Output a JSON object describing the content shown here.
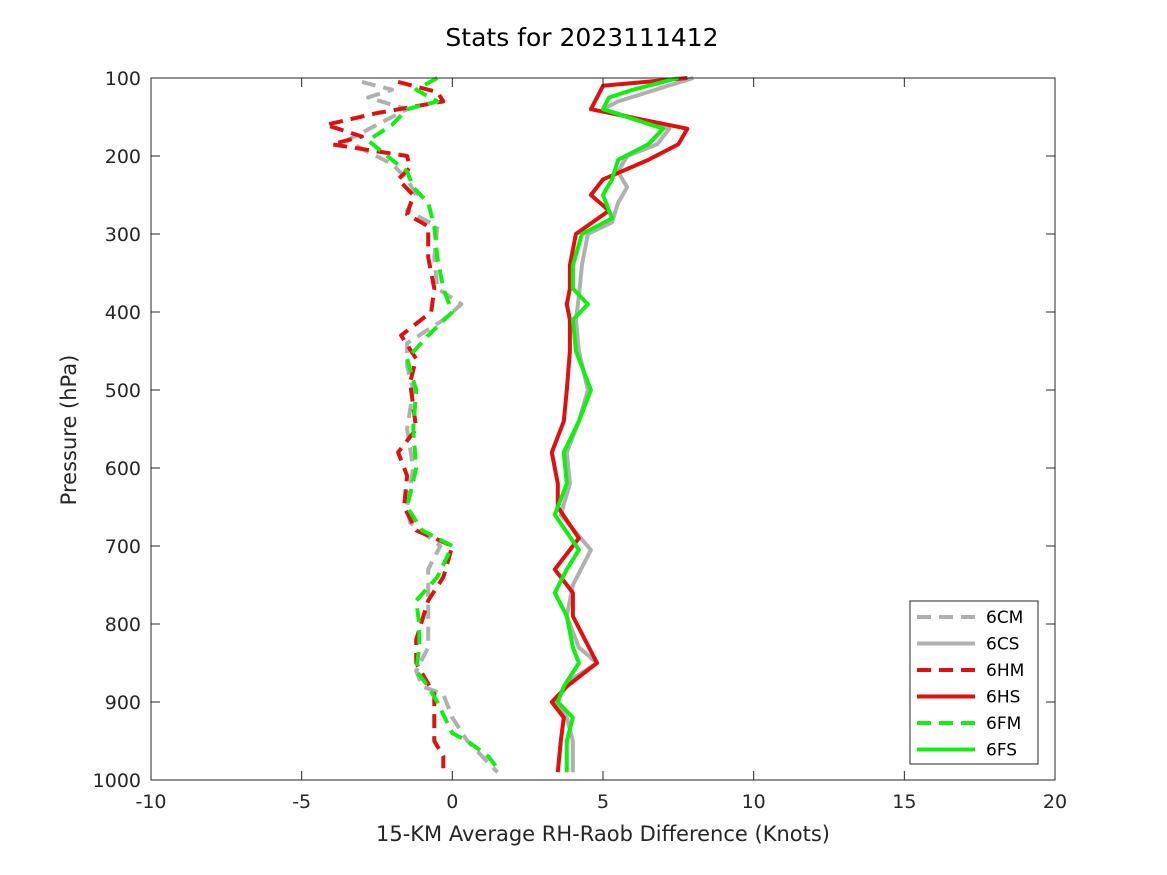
{
  "chart_data": {
    "type": "line",
    "title": "Stats for 2023111412",
    "xlabel": "15-KM Average RH-Raob Difference (Knots)",
    "ylabel": "Pressure (hPa)",
    "xlim": [
      -10,
      20
    ],
    "ylim": [
      100,
      1000
    ],
    "y_reversed": true,
    "grid": false,
    "legend_position": "bottom-right",
    "xticks": [
      "-10",
      "-5",
      "0",
      "5",
      "10",
      "15",
      "20"
    ],
    "yticks": [
      "100",
      "200",
      "300",
      "400",
      "500",
      "600",
      "700",
      "800",
      "900",
      "1000"
    ],
    "series": [
      {
        "name": "6CM",
        "color": "#b0b0b0",
        "dashed": true,
        "points": [
          [
            -3.0,
            105
          ],
          [
            -2.0,
            115
          ],
          [
            -2.8,
            125
          ],
          [
            -1.5,
            140
          ],
          [
            -2.5,
            160
          ],
          [
            -3.5,
            180
          ],
          [
            -2.8,
            195
          ],
          [
            -2.0,
            210
          ],
          [
            -1.5,
            230
          ],
          [
            -1.2,
            250
          ],
          [
            -1.5,
            270
          ],
          [
            -0.5,
            290
          ],
          [
            -0.6,
            330
          ],
          [
            -0.5,
            370
          ],
          [
            0.3,
            390
          ],
          [
            -0.3,
            410
          ],
          [
            -1.5,
            440
          ],
          [
            -1.5,
            470
          ],
          [
            -1.3,
            500
          ],
          [
            -1.5,
            550
          ],
          [
            -1.3,
            600
          ],
          [
            -1.5,
            650
          ],
          [
            -1.4,
            670
          ],
          [
            -0.4,
            700
          ],
          [
            -0.8,
            730
          ],
          [
            -0.8,
            760
          ],
          [
            -0.8,
            790
          ],
          [
            -0.8,
            830
          ],
          [
            -1.2,
            860
          ],
          [
            -1.0,
            880
          ],
          [
            -0.3,
            890
          ],
          [
            0.0,
            920
          ],
          [
            0.5,
            950
          ],
          [
            1.0,
            970
          ],
          [
            1.5,
            990
          ]
        ]
      },
      {
        "name": "6CS",
        "color": "#b0b0b0",
        "dashed": false,
        "points": [
          [
            8.0,
            100
          ],
          [
            6.5,
            118
          ],
          [
            5.5,
            130
          ],
          [
            5.0,
            140
          ],
          [
            7.2,
            165
          ],
          [
            6.8,
            185
          ],
          [
            5.8,
            200
          ],
          [
            5.5,
            220
          ],
          [
            5.8,
            240
          ],
          [
            5.5,
            260
          ],
          [
            5.3,
            285
          ],
          [
            4.5,
            300
          ],
          [
            4.3,
            340
          ],
          [
            4.2,
            380
          ],
          [
            4.1,
            410
          ],
          [
            4.2,
            450
          ],
          [
            4.5,
            500
          ],
          [
            4.2,
            540
          ],
          [
            3.8,
            580
          ],
          [
            3.9,
            620
          ],
          [
            3.6,
            660
          ],
          [
            4.6,
            705
          ],
          [
            4.0,
            750
          ],
          [
            3.8,
            790
          ],
          [
            4.2,
            830
          ],
          [
            4.8,
            850
          ],
          [
            4.0,
            870
          ],
          [
            3.4,
            900
          ],
          [
            3.8,
            920
          ],
          [
            4.0,
            950
          ],
          [
            4.0,
            990
          ]
        ]
      },
      {
        "name": "6HM",
        "color": "#e01010",
        "dashed": true,
        "points": [
          [
            -1.8,
            105
          ],
          [
            -0.5,
            118
          ],
          [
            -0.3,
            130
          ],
          [
            -2.5,
            145
          ],
          [
            -4.2,
            160
          ],
          [
            -3.0,
            175
          ],
          [
            -4.0,
            185
          ],
          [
            -1.5,
            200
          ],
          [
            -1.4,
            215
          ],
          [
            -1.8,
            230
          ],
          [
            -1.3,
            250
          ],
          [
            -1.5,
            275
          ],
          [
            -0.8,
            290
          ],
          [
            -0.8,
            330
          ],
          [
            -0.6,
            370
          ],
          [
            -0.7,
            400
          ],
          [
            -1.7,
            430
          ],
          [
            -1.2,
            460
          ],
          [
            -1.4,
            490
          ],
          [
            -1.2,
            550
          ],
          [
            -1.8,
            580
          ],
          [
            -1.5,
            610
          ],
          [
            -1.6,
            650
          ],
          [
            -1.2,
            680
          ],
          [
            0.0,
            700
          ],
          [
            -0.3,
            740
          ],
          [
            -0.8,
            770
          ],
          [
            -1.2,
            820
          ],
          [
            -1.2,
            850
          ],
          [
            -0.9,
            870
          ],
          [
            -0.6,
            890
          ],
          [
            -0.6,
            950
          ],
          [
            -0.3,
            970
          ],
          [
            -0.3,
            985
          ]
        ]
      },
      {
        "name": "6HS",
        "color": "#e01010",
        "dashed": false,
        "points": [
          [
            7.8,
            100
          ],
          [
            5.0,
            110
          ],
          [
            4.8,
            125
          ],
          [
            4.6,
            140
          ],
          [
            7.8,
            165
          ],
          [
            7.5,
            185
          ],
          [
            6.5,
            205
          ],
          [
            5.0,
            230
          ],
          [
            4.6,
            250
          ],
          [
            5.2,
            270
          ],
          [
            4.1,
            300
          ],
          [
            3.9,
            340
          ],
          [
            3.9,
            370
          ],
          [
            3.8,
            390
          ],
          [
            3.9,
            410
          ],
          [
            3.9,
            450
          ],
          [
            3.8,
            500
          ],
          [
            3.7,
            540
          ],
          [
            3.3,
            580
          ],
          [
            3.5,
            620
          ],
          [
            3.5,
            650
          ],
          [
            4.2,
            690
          ],
          [
            3.4,
            730
          ],
          [
            4.0,
            760
          ],
          [
            4.0,
            790
          ],
          [
            4.4,
            820
          ],
          [
            4.8,
            850
          ],
          [
            3.8,
            880
          ],
          [
            3.3,
            900
          ],
          [
            3.7,
            920
          ],
          [
            3.6,
            950
          ],
          [
            3.5,
            990
          ]
        ]
      },
      {
        "name": "6FM",
        "color": "#10f010",
        "dashed": true,
        "points": [
          [
            -0.5,
            100
          ],
          [
            -1.2,
            115
          ],
          [
            -0.5,
            130
          ],
          [
            -1.5,
            140
          ],
          [
            -2.0,
            160
          ],
          [
            -2.8,
            180
          ],
          [
            -2.0,
            205
          ],
          [
            -1.5,
            220
          ],
          [
            -1.3,
            240
          ],
          [
            -0.8,
            260
          ],
          [
            -0.6,
            290
          ],
          [
            -0.5,
            330
          ],
          [
            -0.3,
            370
          ],
          [
            0.0,
            400
          ],
          [
            -0.8,
            430
          ],
          [
            -1.5,
            460
          ],
          [
            -1.2,
            500
          ],
          [
            -1.3,
            550
          ],
          [
            -1.2,
            600
          ],
          [
            -1.5,
            650
          ],
          [
            -1.0,
            680
          ],
          [
            0.0,
            700
          ],
          [
            -0.5,
            740
          ],
          [
            -1.2,
            770
          ],
          [
            -1.1,
            800
          ],
          [
            -1.1,
            830
          ],
          [
            -1.2,
            860
          ],
          [
            -0.8,
            880
          ],
          [
            -0.5,
            900
          ],
          [
            0.0,
            940
          ],
          [
            0.5,
            950
          ],
          [
            1.2,
            970
          ],
          [
            1.5,
            985
          ]
        ]
      },
      {
        "name": "6FS",
        "color": "#10f010",
        "dashed": false,
        "points": [
          [
            7.5,
            100
          ],
          [
            6.0,
            115
          ],
          [
            5.2,
            125
          ],
          [
            5.0,
            140
          ],
          [
            7.0,
            165
          ],
          [
            6.5,
            185
          ],
          [
            5.5,
            205
          ],
          [
            5.3,
            230
          ],
          [
            5.0,
            250
          ],
          [
            5.3,
            280
          ],
          [
            4.3,
            300
          ],
          [
            4.0,
            340
          ],
          [
            4.0,
            370
          ],
          [
            4.5,
            390
          ],
          [
            4.0,
            410
          ],
          [
            4.1,
            450
          ],
          [
            4.6,
            500
          ],
          [
            4.2,
            540
          ],
          [
            3.7,
            580
          ],
          [
            3.8,
            620
          ],
          [
            3.4,
            660
          ],
          [
            4.2,
            705
          ],
          [
            3.8,
            730
          ],
          [
            3.4,
            760
          ],
          [
            3.8,
            790
          ],
          [
            4.0,
            830
          ],
          [
            4.2,
            850
          ],
          [
            3.7,
            880
          ],
          [
            3.5,
            900
          ],
          [
            4.0,
            920
          ],
          [
            3.8,
            950
          ],
          [
            3.8,
            990
          ]
        ]
      }
    ]
  }
}
